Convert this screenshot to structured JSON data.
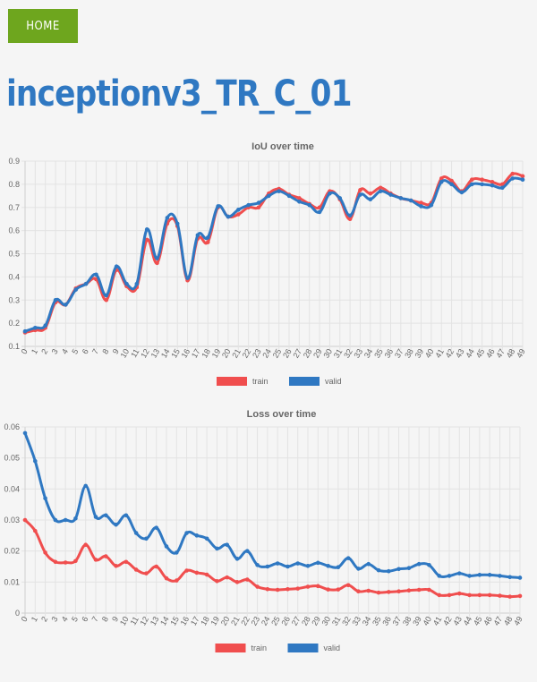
{
  "nav": {
    "home_label": "HOME"
  },
  "page": {
    "title": "inceptionv3_TR_C_01"
  },
  "colors": {
    "train": "#f04e4e",
    "valid": "#2f78c2",
    "home_bg": "#6ea61e",
    "title": "#2f78c2"
  },
  "chart_data": [
    {
      "id": "iou",
      "type": "line",
      "title": "IoU over time",
      "xlabel": "",
      "ylabel": "",
      "categories": [
        "0",
        "1",
        "2",
        "3",
        "4",
        "5",
        "6",
        "7",
        "8",
        "9",
        "10",
        "11",
        "12",
        "13",
        "14",
        "15",
        "16",
        "17",
        "18",
        "19",
        "20",
        "21",
        "22",
        "23",
        "24",
        "25",
        "26",
        "27",
        "28",
        "29",
        "30",
        "31",
        "32",
        "33",
        "34",
        "35",
        "36",
        "37",
        "38",
        "39",
        "40",
        "41",
        "42",
        "43",
        "44",
        "45",
        "46",
        "47",
        "48",
        "49"
      ],
      "ylim": [
        0.1,
        0.9
      ],
      "yticks": [
        "0.1",
        "0.2",
        "0.3",
        "0.4",
        "0.5",
        "0.6",
        "0.7",
        "0.8",
        "0.9"
      ],
      "legend": "bottom",
      "grid": true,
      "series": [
        {
          "name": "train",
          "color": "#f04e4e",
          "values": [
            0.16,
            0.17,
            0.18,
            0.29,
            0.28,
            0.35,
            0.37,
            0.39,
            0.3,
            0.43,
            0.36,
            0.355,
            0.56,
            0.46,
            0.63,
            0.62,
            0.385,
            0.565,
            0.55,
            0.7,
            0.66,
            0.67,
            0.7,
            0.7,
            0.76,
            0.78,
            0.755,
            0.74,
            0.715,
            0.7,
            0.77,
            0.735,
            0.65,
            0.775,
            0.76,
            0.785,
            0.76,
            0.74,
            0.73,
            0.72,
            0.72,
            0.825,
            0.815,
            0.77,
            0.82,
            0.82,
            0.81,
            0.8,
            0.845,
            0.835
          ]
        },
        {
          "name": "valid",
          "color": "#2f78c2",
          "values": [
            0.165,
            0.18,
            0.19,
            0.3,
            0.28,
            0.345,
            0.37,
            0.41,
            0.32,
            0.445,
            0.37,
            0.37,
            0.605,
            0.48,
            0.655,
            0.63,
            0.395,
            0.58,
            0.57,
            0.705,
            0.66,
            0.69,
            0.71,
            0.72,
            0.75,
            0.77,
            0.75,
            0.725,
            0.71,
            0.68,
            0.76,
            0.74,
            0.665,
            0.755,
            0.735,
            0.77,
            0.755,
            0.74,
            0.73,
            0.705,
            0.71,
            0.81,
            0.8,
            0.765,
            0.8,
            0.8,
            0.795,
            0.785,
            0.825,
            0.82
          ]
        }
      ]
    },
    {
      "id": "loss",
      "type": "line",
      "title": "Loss over time",
      "xlabel": "",
      "ylabel": "",
      "categories": [
        "0",
        "1",
        "2",
        "3",
        "4",
        "5",
        "6",
        "7",
        "8",
        "9",
        "10",
        "11",
        "12",
        "13",
        "14",
        "15",
        "16",
        "17",
        "18",
        "19",
        "20",
        "21",
        "22",
        "23",
        "24",
        "25",
        "26",
        "27",
        "28",
        "29",
        "30",
        "31",
        "32",
        "33",
        "34",
        "35",
        "36",
        "37",
        "38",
        "39",
        "40",
        "41",
        "42",
        "43",
        "44",
        "45",
        "46",
        "47",
        "48",
        "49"
      ],
      "ylim": [
        0,
        0.06
      ],
      "yticks": [
        "0",
        "0.01",
        "0.02",
        "0.03",
        "0.04",
        "0.05",
        "0.06"
      ],
      "legend": "bottom",
      "grid": true,
      "series": [
        {
          "name": "train",
          "color": "#f04e4e",
          "values": [
            0.03,
            0.0265,
            0.0195,
            0.0165,
            0.0163,
            0.0168,
            0.022,
            0.0172,
            0.0183,
            0.0152,
            0.0165,
            0.014,
            0.0128,
            0.015,
            0.0112,
            0.0105,
            0.0137,
            0.013,
            0.0124,
            0.0103,
            0.0115,
            0.01,
            0.0108,
            0.0085,
            0.0077,
            0.0075,
            0.0077,
            0.0079,
            0.0085,
            0.0087,
            0.0076,
            0.0076,
            0.009,
            0.007,
            0.0072,
            0.0066,
            0.0068,
            0.007,
            0.0073,
            0.0075,
            0.0075,
            0.0058,
            0.0058,
            0.0063,
            0.0058,
            0.0058,
            0.0058,
            0.0056,
            0.0053,
            0.0055
          ]
        },
        {
          "name": "valid",
          "color": "#2f78c2",
          "values": [
            0.058,
            0.049,
            0.037,
            0.03,
            0.03,
            0.0305,
            0.041,
            0.031,
            0.0315,
            0.0285,
            0.0315,
            0.0258,
            0.024,
            0.0275,
            0.0215,
            0.0195,
            0.0258,
            0.025,
            0.024,
            0.0208,
            0.022,
            0.0175,
            0.02,
            0.0155,
            0.015,
            0.016,
            0.015,
            0.016,
            0.0152,
            0.0162,
            0.0152,
            0.0148,
            0.0177,
            0.0143,
            0.0158,
            0.0138,
            0.0135,
            0.0142,
            0.0145,
            0.0158,
            0.0155,
            0.012,
            0.012,
            0.0128,
            0.012,
            0.0123,
            0.0123,
            0.012,
            0.0116,
            0.0114
          ]
        }
      ]
    }
  ]
}
